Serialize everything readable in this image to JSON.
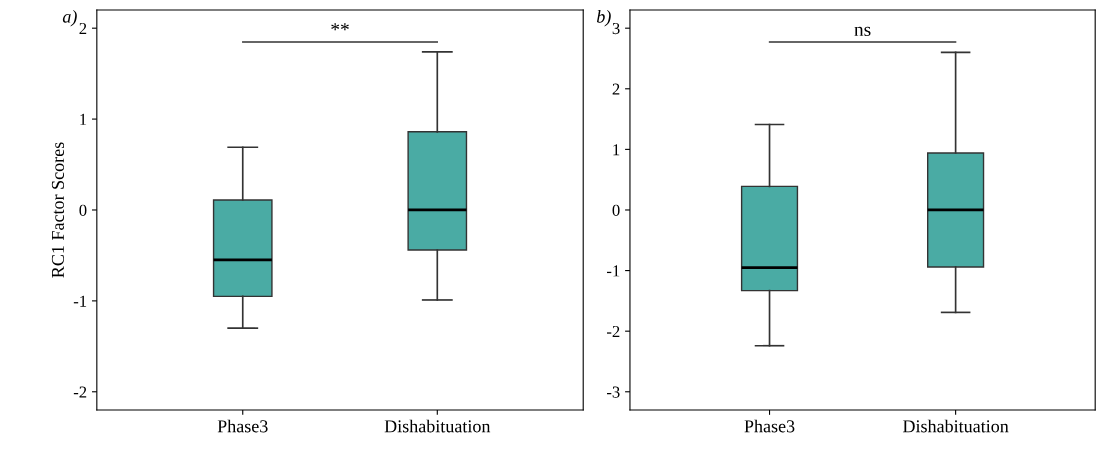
{
  "chart_data": [
    {
      "type": "box",
      "title": "a)",
      "ylabel": "RC1 Factor Scores",
      "categories": [
        "Phase3",
        "Dishabituation"
      ],
      "color": "#4aaba4",
      "ylim": [
        -2.2,
        2.2
      ],
      "yticks": [
        -2,
        -1,
        0,
        1,
        2
      ],
      "grid": false,
      "legend": false,
      "boxes": [
        {
          "low": -1.3,
          "q1": -0.95,
          "median": -0.55,
          "q3": 0.11,
          "high": 0.69
        },
        {
          "low": -0.99,
          "q1": -0.44,
          "median": 0,
          "q3": 0.86,
          "high": 1.74
        }
      ],
      "annotations": [
        "**"
      ]
    },
    {
      "type": "box",
      "title": "b)",
      "categories": [
        "Phase3",
        "Dishabituation"
      ],
      "color": "#4aaba4",
      "ylim": [
        -3.3,
        3.3
      ],
      "yticks": [
        -3,
        -2,
        -1,
        0,
        1,
        2,
        3
      ],
      "grid": false,
      "legend": false,
      "boxes": [
        {
          "low": -2.24,
          "q1": -1.33,
          "median": -0.95,
          "q3": 0.39,
          "high": 1.41
        },
        {
          "low": -1.69,
          "q1": -0.94,
          "median": 0,
          "q3": 0.94,
          "high": 2.6
        }
      ],
      "annotations": [
        "ns"
      ]
    }
  ]
}
